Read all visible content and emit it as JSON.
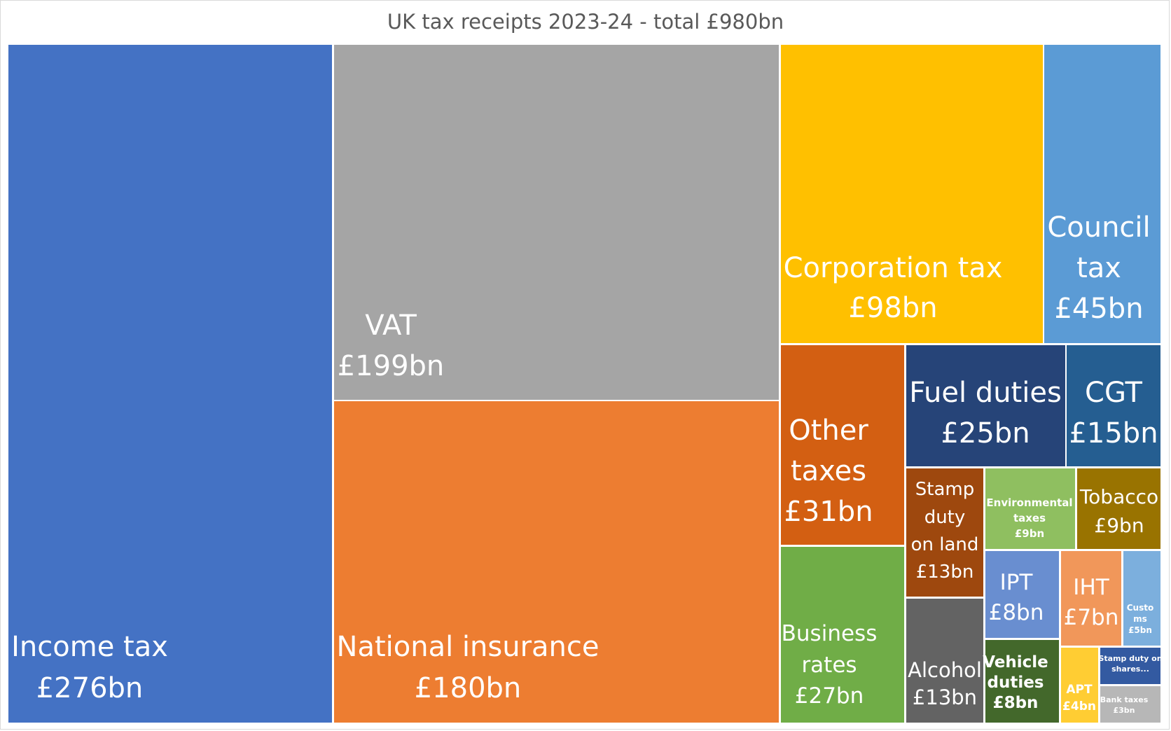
{
  "chart_data": {
    "type": "treemap",
    "title": "UK tax receipts 2023-24 - total £980bn",
    "unit": "£bn",
    "items": [
      {
        "name": "Income tax",
        "label": "£276bn",
        "value": 276,
        "color": "#4472c4"
      },
      {
        "name": "VAT",
        "label": "£199bn",
        "value": 199,
        "color": "#a5a5a5"
      },
      {
        "name": "National insurance",
        "label": "£180bn",
        "value": 180,
        "color": "#ed7d31"
      },
      {
        "name": "Corporation tax",
        "label": "£98bn",
        "value": 98,
        "color": "#ffc000"
      },
      {
        "name": "Council tax",
        "label": "£45bn",
        "value": 45,
        "color": "#5b9bd5"
      },
      {
        "name": "Other taxes",
        "label": "£31bn",
        "value": 31,
        "color": "#d35f12"
      },
      {
        "name": "Business rates",
        "label": "£27bn",
        "value": 27,
        "color": "#70ad47"
      },
      {
        "name": "Fuel duties",
        "label": "£25bn",
        "value": 25,
        "color": "#264478"
      },
      {
        "name": "CGT",
        "label": "£15bn",
        "value": 15,
        "color": "#255e91"
      },
      {
        "name": "Stamp duty on land",
        "label": "£13bn",
        "value": 13,
        "color": "#9e480e"
      },
      {
        "name": "Alcohol",
        "label": "£13bn",
        "value": 13,
        "color": "#636363"
      },
      {
        "name": "Environmental taxes",
        "label": "£9bn",
        "value": 9,
        "color": "#8fbf60"
      },
      {
        "name": "Tobacco",
        "label": "£9bn",
        "value": 9,
        "color": "#997300"
      },
      {
        "name": "IPT",
        "label": "£8bn",
        "value": 8,
        "color": "#698ed0"
      },
      {
        "name": "Vehicle duties",
        "label": "£8bn",
        "value": 8,
        "color": "#43682b"
      },
      {
        "name": "IHT",
        "label": "£7bn",
        "value": 7,
        "color": "#f1975a"
      },
      {
        "name": "Customs",
        "label": "£5bn",
        "value": 5,
        "color": "#7cafdd"
      },
      {
        "name": "APT",
        "label": "£4bn",
        "value": 4,
        "color": "#ffcd33"
      },
      {
        "name": "Stamp duty on shares...",
        "label": "",
        "value": 4,
        "color": "#335aa1"
      },
      {
        "name": "Bank taxes",
        "label": "£3bn",
        "value": 3,
        "color": "#b7b7b7"
      }
    ]
  }
}
